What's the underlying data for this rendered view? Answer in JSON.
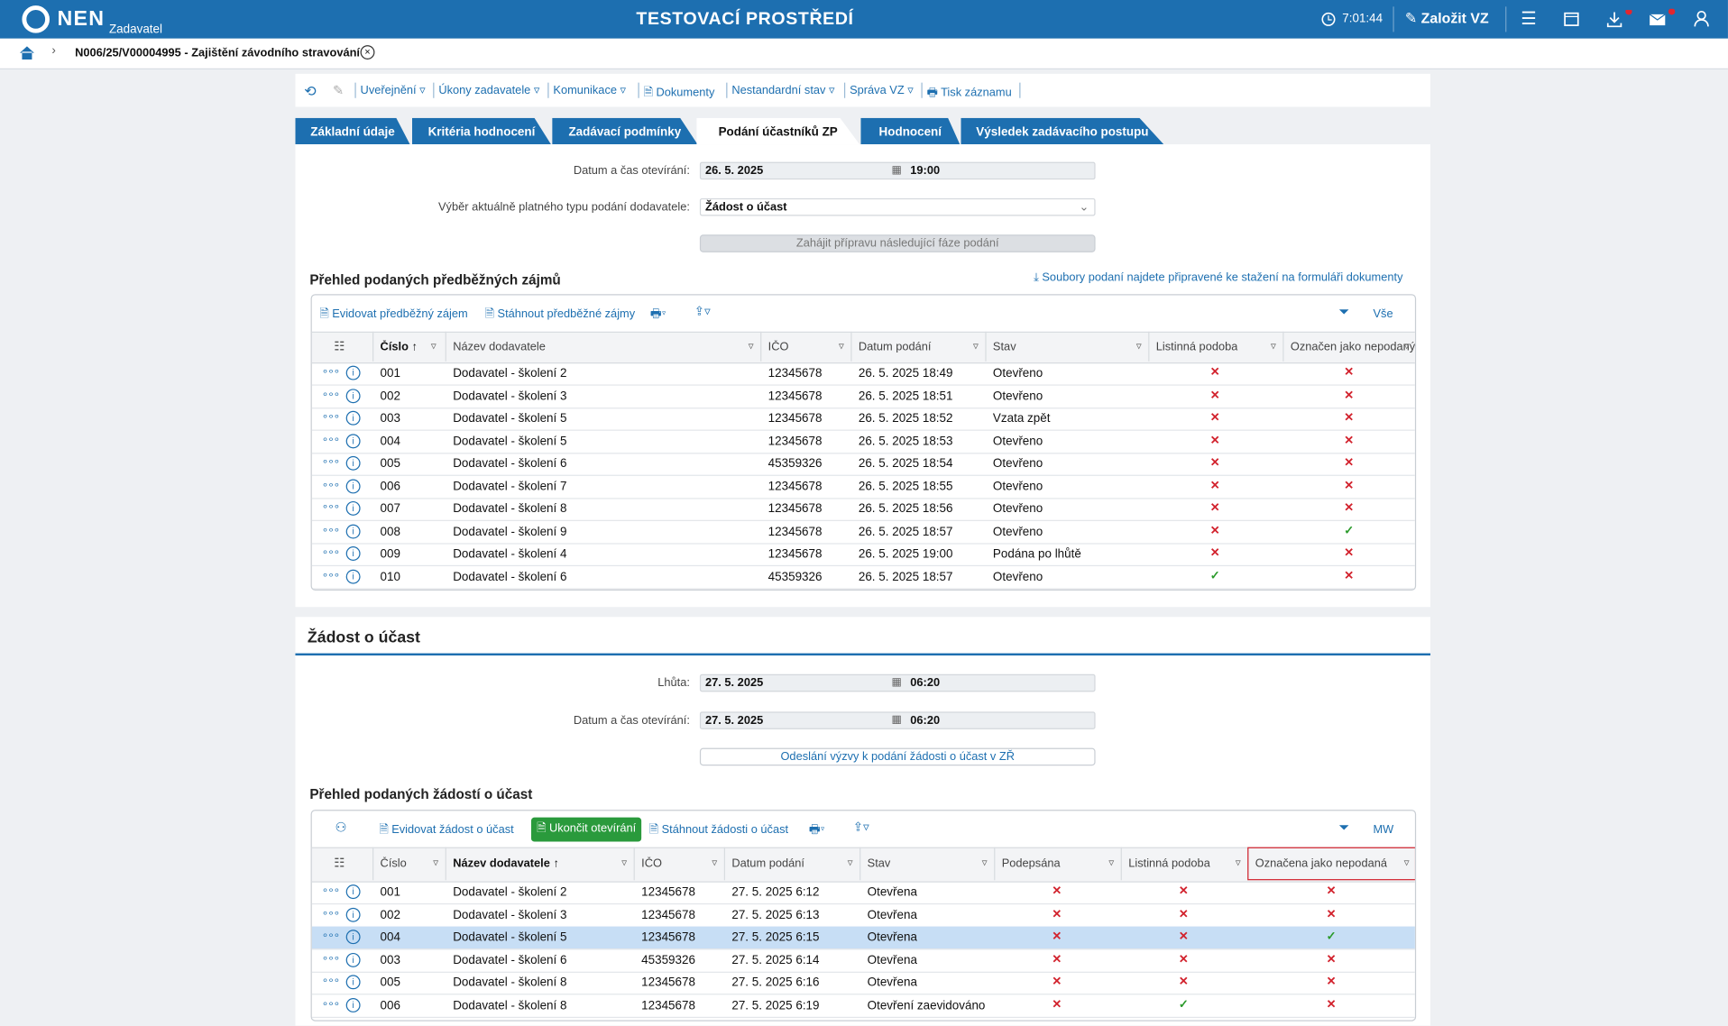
{
  "header": {
    "logo": "NEN",
    "role": "Zadavatel",
    "environment": "TESTOVACÍ PROSTŘEDÍ",
    "time": "7:01:44",
    "create": "Založit VZ"
  },
  "breadcrumb": "N006/25/V00004995 - Zajištění závodního stravování",
  "toolbar": [
    "Uveřejnění",
    "Úkony zadavatele",
    "Komunikace",
    "Dokumenty",
    "Nestandardní stav",
    "Správa VZ",
    "Tisk záznamu"
  ],
  "tabs": {
    "items": [
      "Základní údaje",
      "Kritéria hodnocení",
      "Zadávací podmínky",
      "Podání účastníků ZP",
      "Hodnocení",
      "Výsledek zadávacího postupu"
    ],
    "active": 3
  },
  "preliminary": {
    "opening_label": "Datum a čas otevírání:",
    "opening_date": "26. 5. 2025",
    "opening_time": "19:00",
    "type_label": "Výběr aktuálně platného typu podání dodavatele:",
    "type_value": "Žádost o účast",
    "next_phase_button": "Zahájit přípravu následující fáze podání",
    "title": "Přehled podaných předběžných zájmů",
    "files_link": "Soubory podaní najdete připravené ke stažení na formuláři dokumenty",
    "grid": {
      "actions": [
        "Evidovat předběžný zájem",
        "Stáhnout předběžné zájmy"
      ],
      "filter": "Vše",
      "columns": [
        "Číslo",
        "Název dodavatele",
        "IČO",
        "Datum podání",
        "Stav",
        "Listinná podoba",
        "Označen jako nepodaný"
      ],
      "rows": [
        [
          "001",
          "Dodavatel - školení 2",
          "12345678",
          "26. 5. 2025 18:49",
          "Otevřeno",
          false,
          false
        ],
        [
          "002",
          "Dodavatel - školení 3",
          "12345678",
          "26. 5. 2025 18:51",
          "Otevřeno",
          false,
          false
        ],
        [
          "003",
          "Dodavatel - školení 5",
          "12345678",
          "26. 5. 2025 18:52",
          "Vzata zpět",
          false,
          false
        ],
        [
          "004",
          "Dodavatel - školení 5",
          "12345678",
          "26. 5. 2025 18:53",
          "Otevřeno",
          false,
          false
        ],
        [
          "005",
          "Dodavatel - školení 6",
          "45359326",
          "26. 5. 2025 18:54",
          "Otevřeno",
          false,
          false
        ],
        [
          "006",
          "Dodavatel - školení 7",
          "12345678",
          "26. 5. 2025 18:55",
          "Otevřeno",
          false,
          false
        ],
        [
          "007",
          "Dodavatel - školení 8",
          "12345678",
          "26. 5. 2025 18:56",
          "Otevřeno",
          false,
          false
        ],
        [
          "008",
          "Dodavatel - školení 9",
          "12345678",
          "26. 5. 2025 18:57",
          "Otevřeno",
          false,
          true
        ],
        [
          "009",
          "Dodavatel - školení 4",
          "12345678",
          "26. 5. 2025 19:00",
          "Podána po lhůtě",
          false,
          false
        ],
        [
          "010",
          "Dodavatel - školení 6",
          "45359326",
          "26. 5. 2025 18:57",
          "Otevřeno",
          true,
          false
        ]
      ]
    }
  },
  "request": {
    "title": "Žádost o účast",
    "deadline_label": "Lhůta:",
    "deadline_date": "27. 5. 2025",
    "deadline_time": "06:20",
    "opening_label": "Datum a čas otevírání:",
    "opening_date": "27. 5. 2025",
    "opening_time": "06:20",
    "invite_button": "Odeslání výzvy k podání žádosti o účast v ZŘ",
    "list_title": "Přehled podaných žádostí o účast",
    "grid": {
      "actions": [
        "Evidovat žádost o účast",
        "Ukončit otevírání",
        "Stáhnout žádosti o účast"
      ],
      "filter": "MW",
      "columns": [
        "Číslo",
        "Název dodavatele",
        "IČO",
        "Datum podání",
        "Stav",
        "Podepsána",
        "Listinná podoba",
        "Označena jako nepodaná"
      ],
      "selected_row": 2,
      "rows": [
        [
          "001",
          "Dodavatel - školení 2",
          "12345678",
          "27. 5. 2025 6:12",
          "Otevřena",
          false,
          false,
          false
        ],
        [
          "002",
          "Dodavatel - školení 3",
          "12345678",
          "27. 5. 2025 6:13",
          "Otevřena",
          false,
          false,
          false
        ],
        [
          "004",
          "Dodavatel - školení 5",
          "12345678",
          "27. 5. 2025 6:15",
          "Otevřena",
          false,
          false,
          true
        ],
        [
          "003",
          "Dodavatel - školení 6",
          "45359326",
          "27. 5. 2025 6:14",
          "Otevřena",
          false,
          false,
          false
        ],
        [
          "005",
          "Dodavatel - školení 8",
          "12345678",
          "27. 5. 2025 6:16",
          "Otevřena",
          false,
          false,
          false
        ],
        [
          "006",
          "Dodavatel - školení 8",
          "12345678",
          "27. 5. 2025 6:19",
          "Otevření zaevidováno",
          false,
          true,
          false
        ]
      ]
    }
  }
}
